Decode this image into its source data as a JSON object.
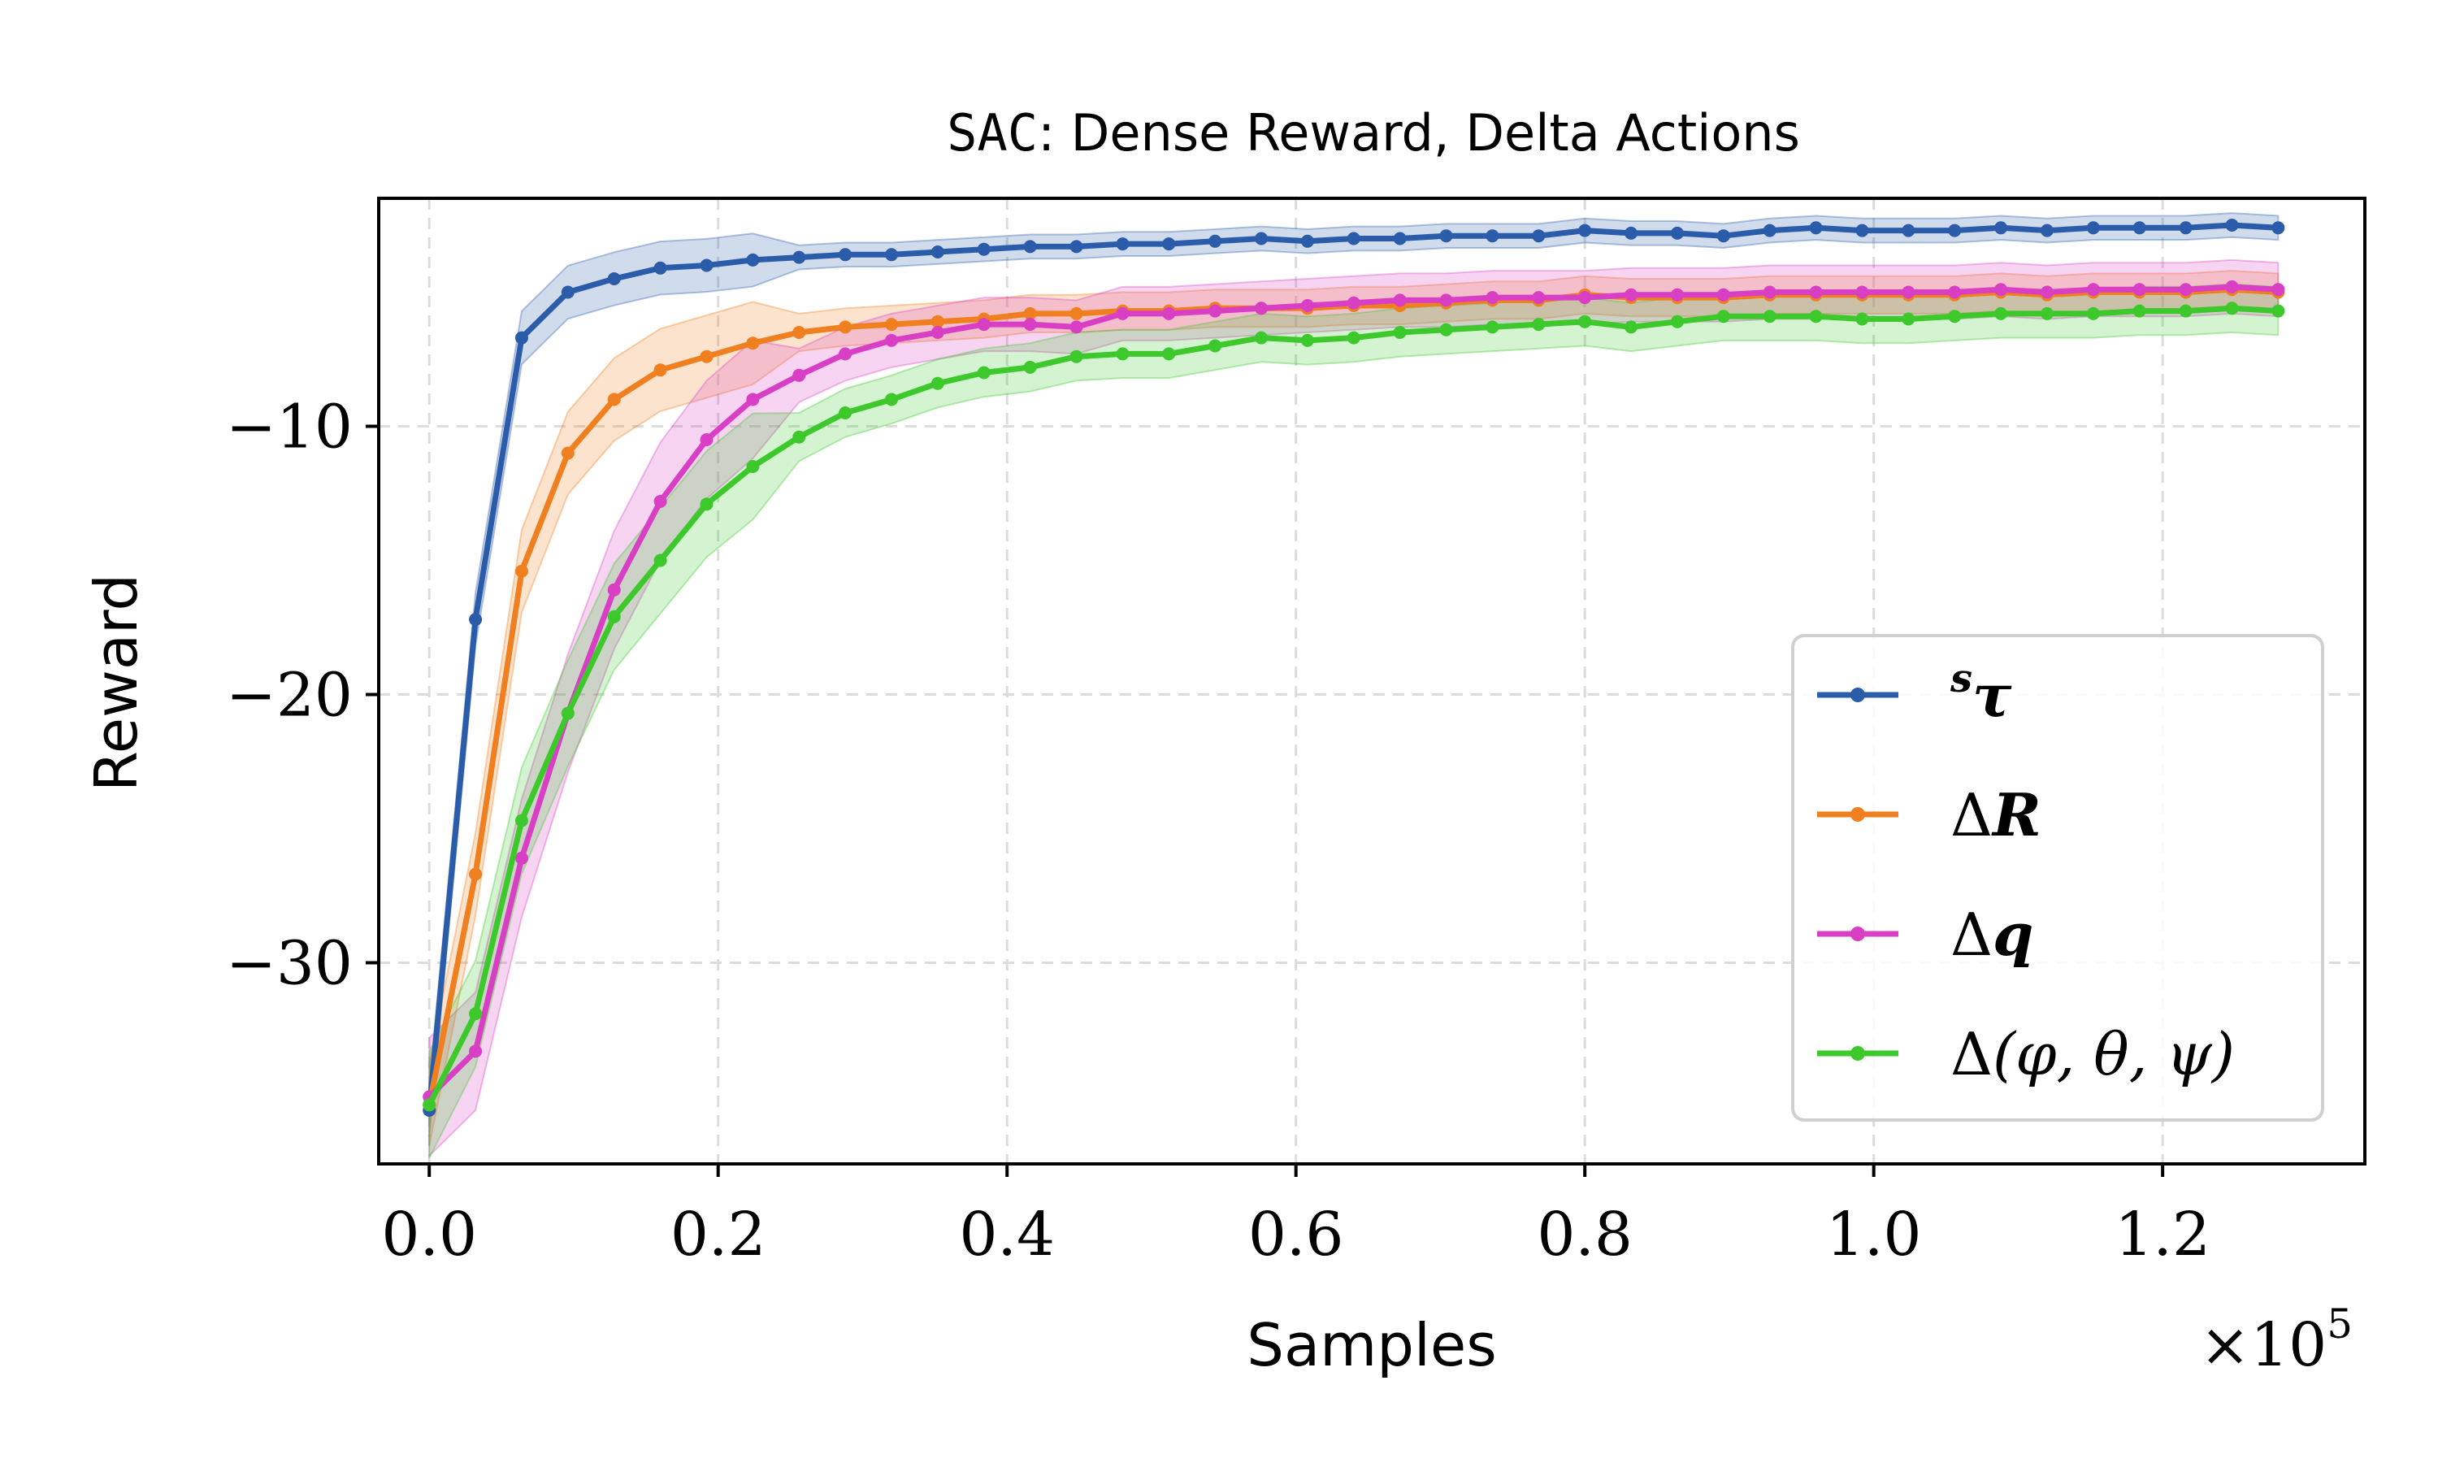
{
  "chart_data": {
    "type": "line",
    "title_mono": "SAC",
    "title_rest": ": Dense Reward, Delta Actions",
    "xlabel": "Samples",
    "ylabel": "Reward",
    "x_multiplier_base": "×10",
    "x_multiplier_exp": "5",
    "xlim": [
      -0.035,
      1.34
    ],
    "ylim": [
      -37.5,
      -1.5
    ],
    "xticks": [
      0.0,
      0.2,
      0.4,
      0.6,
      0.8,
      1.0,
      1.2
    ],
    "xtick_labels": [
      "0.0",
      "0.2",
      "0.4",
      "0.6",
      "0.8",
      "1.0",
      "1.2"
    ],
    "yticks": [
      -10,
      -20,
      -30
    ],
    "ytick_labels": [
      "−10",
      "−20",
      "−30"
    ],
    "grid": true,
    "legend_position": "lower-right",
    "x": [
      0.0,
      0.032,
      0.064,
      0.096,
      0.128,
      0.16,
      0.192,
      0.224,
      0.256,
      0.288,
      0.32,
      0.352,
      0.384,
      0.416,
      0.448,
      0.48,
      0.512,
      0.544,
      0.576,
      0.608,
      0.64,
      0.672,
      0.704,
      0.736,
      0.768,
      0.8,
      0.832,
      0.864,
      0.896,
      0.928,
      0.96,
      0.992,
      1.024,
      1.056,
      1.088,
      1.12,
      1.152,
      1.184,
      1.216,
      1.248,
      1.28
    ],
    "series": [
      {
        "name": "sτ",
        "label_prefix": "s",
        "label_main": "τ",
        "color": "#2a5caa",
        "values": [
          -35.5,
          -17.2,
          -6.7,
          -5.0,
          -4.5,
          -4.1,
          -4.0,
          -3.8,
          -3.7,
          -3.6,
          -3.6,
          -3.5,
          -3.4,
          -3.3,
          -3.3,
          -3.2,
          -3.2,
          -3.1,
          -3.0,
          -3.1,
          -3.0,
          -3.0,
          -2.9,
          -2.9,
          -2.9,
          -2.7,
          -2.8,
          -2.8,
          -2.9,
          -2.7,
          -2.6,
          -2.7,
          -2.7,
          -2.7,
          -2.6,
          -2.7,
          -2.6,
          -2.6,
          -2.6,
          -2.5,
          -2.6
        ],
        "band": 0.45
      },
      {
        "name": "ΔR",
        "label_prefix": "Δ",
        "label_main": "R",
        "color": "#f07f1f",
        "values": [
          -35.3,
          -26.7,
          -15.4,
          -11.0,
          -9.0,
          -7.9,
          -7.4,
          -6.9,
          -6.5,
          -6.3,
          -6.2,
          -6.1,
          -6.0,
          -5.8,
          -5.8,
          -5.7,
          -5.7,
          -5.6,
          -5.6,
          -5.6,
          -5.5,
          -5.5,
          -5.4,
          -5.3,
          -5.3,
          -5.1,
          -5.2,
          -5.2,
          -5.2,
          -5.1,
          -5.1,
          -5.1,
          -5.1,
          -5.1,
          -5.0,
          -5.1,
          -5.0,
          -5.0,
          -5.0,
          -4.9,
          -5.0
        ],
        "band": 0.7
      },
      {
        "name": "Δq",
        "label_prefix": "Δ",
        "label_main": "q",
        "color": "#d93fc4",
        "values": [
          -35.0,
          -33.3,
          -26.1,
          -20.7,
          -16.1,
          -12.8,
          -10.5,
          -9.0,
          -8.1,
          -7.3,
          -6.8,
          -6.5,
          -6.2,
          -6.2,
          -6.3,
          -5.8,
          -5.8,
          -5.7,
          -5.6,
          -5.5,
          -5.4,
          -5.3,
          -5.3,
          -5.2,
          -5.2,
          -5.2,
          -5.1,
          -5.1,
          -5.1,
          -5.0,
          -5.0,
          -5.0,
          -5.0,
          -5.0,
          -4.9,
          -5.0,
          -4.9,
          -4.9,
          -4.9,
          -4.8,
          -4.9
        ],
        "band": 1.0
      },
      {
        "name": "Δ(φ,θ,ψ)",
        "label_prefix": "Δ",
        "label_main": "(φ, θ, ψ)",
        "color": "#3dc92c",
        "values": [
          -35.3,
          -31.9,
          -24.7,
          -20.7,
          -17.1,
          -15.0,
          -12.9,
          -11.5,
          -10.4,
          -9.5,
          -9.0,
          -8.4,
          -8.0,
          -7.8,
          -7.4,
          -7.3,
          -7.3,
          -7.0,
          -6.7,
          -6.8,
          -6.7,
          -6.5,
          -6.4,
          -6.3,
          -6.2,
          -6.1,
          -6.3,
          -6.1,
          -5.9,
          -5.9,
          -5.9,
          -6.0,
          -6.0,
          -5.9,
          -5.8,
          -5.8,
          -5.8,
          -5.7,
          -5.7,
          -5.6,
          -5.7
        ],
        "band": 0.9
      }
    ]
  }
}
